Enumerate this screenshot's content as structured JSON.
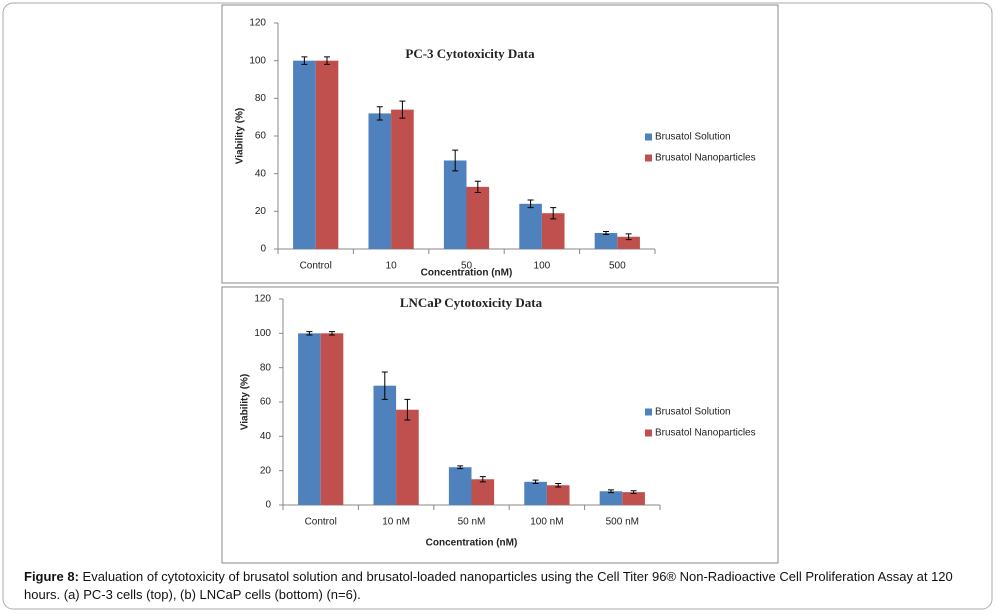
{
  "chart_data": [
    {
      "type": "bar",
      "title": "PC-3 Cytotoxicity Data",
      "x_label": "Concentration (nM)",
      "y_label": "Viability (%)",
      "categories": [
        "Control",
        "10",
        "50",
        "100",
        "500"
      ],
      "series": [
        {
          "name": "Brusatol Solution",
          "color": "#4f81bd",
          "values": [
            100,
            72,
            47,
            24,
            8.5
          ],
          "errors": [
            2,
            3.5,
            5.5,
            2,
            0.8
          ]
        },
        {
          "name": "Brusatol Nanoparticles",
          "color": "#c0504d",
          "values": [
            100,
            74,
            33,
            19,
            6.5
          ],
          "errors": [
            2,
            4.5,
            3,
            3,
            1.5
          ]
        }
      ],
      "ylim": [
        0,
        120
      ],
      "yticks": [
        0,
        20,
        40,
        60,
        80,
        100,
        120
      ],
      "legend": "right"
    },
    {
      "type": "bar",
      "title": "LNCaP Cytotoxicity Data",
      "x_label": "Concentration (nM)",
      "y_label": "Viability (%)",
      "categories": [
        "Control",
        "10 nM",
        "50 nM",
        "100 nM",
        "500 nM"
      ],
      "series": [
        {
          "name": "Brusatol Solution",
          "color": "#4f81bd",
          "values": [
            100,
            69.5,
            22,
            13.5,
            8
          ],
          "errors": [
            1,
            8,
            0.8,
            1,
            0.8
          ]
        },
        {
          "name": "Brusatol Nanoparticles",
          "color": "#c0504d",
          "values": [
            100,
            55.5,
            15,
            11.5,
            7.5
          ],
          "errors": [
            1,
            6,
            1.5,
            1,
            0.8
          ]
        }
      ],
      "ylim": [
        0,
        120
      ],
      "yticks": [
        0,
        20,
        40,
        60,
        80,
        100,
        120
      ],
      "legend": "right"
    }
  ],
  "caption": {
    "label": "Figure 8:",
    "text": "Evaluation of cytotoxicity of brusatol solution and brusatol-loaded nanoparticles using the Cell Titer 96® Non-Radioactive Cell Proliferation Assay at 120 hours. (a) PC-3 cells (top), (b) LNCaP cells (bottom) (n=6)."
  }
}
